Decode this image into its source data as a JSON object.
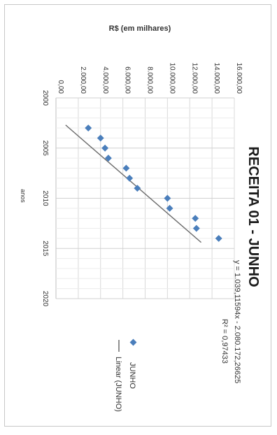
{
  "chart_data": {
    "type": "scatter",
    "title": "RECEITA 01 - JUNHO",
    "xlabel": "anos",
    "ylabel": "R$ (em milhares)",
    "xlim": [
      2000,
      2020
    ],
    "ylim": [
      0,
      16000
    ],
    "x_ticks": [
      "2000",
      "2005",
      "2010",
      "2015",
      "2020"
    ],
    "y_ticks": [
      "0,00",
      "2.000,00",
      "4.000,00",
      "6.000,00",
      "8.000,00",
      "10.000,00",
      "12.000,00",
      "14.000,00",
      "16.000,00"
    ],
    "grid": true,
    "rotation": "rotated 90 degrees clockwise",
    "series": [
      {
        "name": "JUNHO",
        "kind": "markers",
        "color": "#4a7ebb",
        "x": [
          2003,
          2004,
          2005,
          2006,
          2007,
          2008,
          2009,
          2010,
          2011,
          2012,
          2013,
          2014
        ],
        "y": [
          2900,
          4000,
          4400,
          4700,
          6300,
          6600,
          7300,
          10000,
          10200,
          12500,
          12600,
          14600
        ]
      },
      {
        "name": "Linear (JUNHO)",
        "kind": "trendline",
        "color": "#6b6b6b",
        "slope": 1039.11594,
        "intercept": -2080172.26625
      }
    ],
    "trendline_equation": "y = 1.039,11594x - 2.080.172,26625",
    "r_squared": "R² = 0,97433",
    "legend": {
      "position": "bottom",
      "items": [
        "JUNHO",
        "Linear (JUNHO)"
      ]
    }
  }
}
